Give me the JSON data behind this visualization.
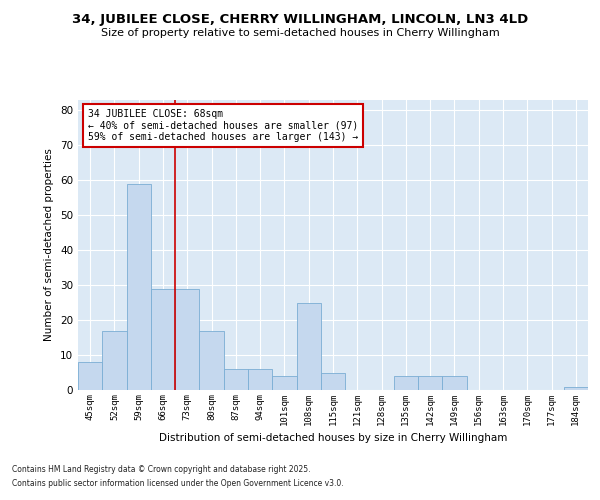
{
  "title_line1": "34, JUBILEE CLOSE, CHERRY WILLINGHAM, LINCOLN, LN3 4LD",
  "title_line2": "Size of property relative to semi-detached houses in Cherry Willingham",
  "xlabel": "Distribution of semi-detached houses by size in Cherry Willingham",
  "ylabel": "Number of semi-detached properties",
  "categories": [
    "45sqm",
    "52sqm",
    "59sqm",
    "66sqm",
    "73sqm",
    "80sqm",
    "87sqm",
    "94sqm",
    "101sqm",
    "108sqm",
    "115sqm",
    "121sqm",
    "128sqm",
    "135sqm",
    "142sqm",
    "149sqm",
    "156sqm",
    "163sqm",
    "170sqm",
    "177sqm",
    "184sqm"
  ],
  "values": [
    8,
    17,
    59,
    29,
    29,
    17,
    6,
    6,
    4,
    25,
    5,
    0,
    0,
    4,
    4,
    4,
    0,
    0,
    0,
    0,
    1
  ],
  "bar_color": "#c5d8ee",
  "bar_edge_color": "#7aadd4",
  "vline_color": "#cc0000",
  "vline_position": 3.5,
  "ylim": [
    0,
    83
  ],
  "yticks": [
    0,
    10,
    20,
    30,
    40,
    50,
    60,
    70,
    80
  ],
  "plot_bg_color": "#dce9f5",
  "fig_bg_color": "#ffffff",
  "subject_label": "34 JUBILEE CLOSE: 68sqm",
  "annotation_smaller": "← 40% of semi-detached houses are smaller (97)",
  "annotation_larger": "59% of semi-detached houses are larger (143) →",
  "annotation_box_facecolor": "#ffffff",
  "annotation_box_edgecolor": "#cc0000",
  "footer_line1": "Contains HM Land Registry data © Crown copyright and database right 2025.",
  "footer_line2": "Contains public sector information licensed under the Open Government Licence v3.0."
}
